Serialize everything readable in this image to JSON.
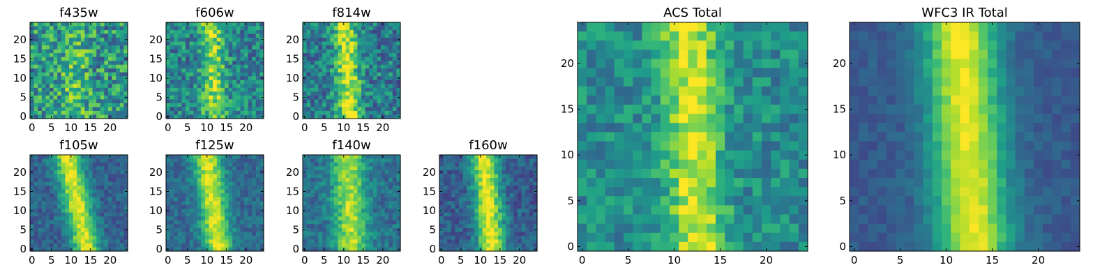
{
  "colormap": "viridis",
  "chart_data": [
    {
      "type": "heatmap",
      "title": "f435w",
      "grid_size": 25,
      "xlim": [
        0,
        24
      ],
      "ylim": [
        0,
        24
      ],
      "xticks": [
        "0",
        "5",
        "10",
        "15",
        "20"
      ],
      "yticks": [
        "0",
        "5",
        "10",
        "15",
        "20"
      ],
      "stripe": {
        "center_top": 11.0,
        "center_bottom": 11.0,
        "width": 3.5
      },
      "peak": 0.7,
      "background": 0.52,
      "noise": 0.28
    },
    {
      "type": "heatmap",
      "title": "f606w",
      "grid_size": 25,
      "xlim": [
        0,
        24
      ],
      "ylim": [
        0,
        24
      ],
      "xticks": [
        "0",
        "5",
        "10",
        "15",
        "20"
      ],
      "yticks": [
        "0",
        "5",
        "10",
        "15",
        "20"
      ],
      "stripe": {
        "center_top": 11.0,
        "center_bottom": 12.0,
        "width": 3.0
      },
      "peak": 0.85,
      "background": 0.45,
      "noise": 0.22
    },
    {
      "type": "heatmap",
      "title": "f814w",
      "grid_size": 25,
      "xlim": [
        0,
        24
      ],
      "ylim": [
        0,
        24
      ],
      "xticks": [
        "0",
        "5",
        "10",
        "15",
        "20"
      ],
      "yticks": [
        "0",
        "5",
        "10",
        "15",
        "20"
      ],
      "stripe": {
        "center_top": 10.5,
        "center_bottom": 11.5,
        "width": 3.0
      },
      "peak": 0.92,
      "background": 0.42,
      "noise": 0.22
    },
    {
      "type": "heatmap",
      "title": "f105w",
      "grid_size": 25,
      "xlim": [
        0,
        24
      ],
      "ylim": [
        0,
        24
      ],
      "xticks": [
        "0",
        "5",
        "10",
        "15",
        "20"
      ],
      "yticks": [
        "0",
        "5",
        "10",
        "15",
        "20"
      ],
      "stripe": {
        "center_top": 9.0,
        "center_bottom": 14.0,
        "width": 3.5
      },
      "peak": 0.95,
      "background": 0.32,
      "noise": 0.12
    },
    {
      "type": "heatmap",
      "title": "f125w",
      "grid_size": 25,
      "xlim": [
        0,
        24
      ],
      "ylim": [
        0,
        24
      ],
      "xticks": [
        "0",
        "5",
        "10",
        "15",
        "20"
      ],
      "yticks": [
        "0",
        "5",
        "10",
        "15",
        "20"
      ],
      "stripe": {
        "center_top": 10.0,
        "center_bottom": 13.0,
        "width": 3.5
      },
      "peak": 0.95,
      "background": 0.35,
      "noise": 0.12
    },
    {
      "type": "heatmap",
      "title": "f140w",
      "grid_size": 25,
      "xlim": [
        0,
        24
      ],
      "ylim": [
        0,
        24
      ],
      "xticks": [
        "0",
        "5",
        "10",
        "15",
        "20"
      ],
      "yticks": [
        "0",
        "5",
        "10",
        "15",
        "20"
      ],
      "stripe": {
        "center_top": 11.0,
        "center_bottom": 12.0,
        "width": 4.0
      },
      "peak": 0.88,
      "background": 0.38,
      "noise": 0.13
    },
    {
      "type": "heatmap",
      "title": "f160w",
      "grid_size": 25,
      "xlim": [
        0,
        24
      ],
      "ylim": [
        0,
        24
      ],
      "xticks": [
        "0",
        "5",
        "10",
        "15",
        "20"
      ],
      "yticks": [
        "0",
        "5",
        "10",
        "15",
        "20"
      ],
      "stripe": {
        "center_top": 11.0,
        "center_bottom": 13.0,
        "width": 3.5
      },
      "peak": 0.95,
      "background": 0.3,
      "noise": 0.13
    },
    {
      "type": "heatmap",
      "title": "ACS Total",
      "grid_size": 25,
      "xlim": [
        0,
        24
      ],
      "ylim": [
        0,
        24
      ],
      "xticks": [
        "0",
        "5",
        "10",
        "15",
        "20"
      ],
      "yticks": [
        "0",
        "5",
        "10",
        "15",
        "20"
      ],
      "stripe": {
        "center_top": 11.5,
        "center_bottom": 12.5,
        "width": 3.0
      },
      "peak": 0.95,
      "background": 0.48,
      "noise": 0.16
    },
    {
      "type": "heatmap",
      "title": "WFC3 IR Total",
      "grid_size": 25,
      "xlim": [
        0,
        24
      ],
      "ylim": [
        0,
        24
      ],
      "xticks": [
        "0",
        "5",
        "10",
        "15",
        "20"
      ],
      "yticks": [
        "0",
        "5",
        "10",
        "15",
        "20"
      ],
      "stripe": {
        "center_top": 11.5,
        "center_bottom": 13.0,
        "width": 4.0
      },
      "peak": 0.97,
      "background": 0.28,
      "noise": 0.06
    }
  ]
}
